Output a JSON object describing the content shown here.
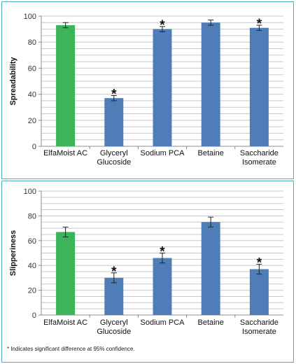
{
  "chart_data": [
    {
      "type": "bar",
      "categories": [
        [
          "ElfaMoist AC"
        ],
        [
          "Glyceryl",
          "Glucoside"
        ],
        [
          "Sodium PCA"
        ],
        [
          "Betaine"
        ],
        [
          "Saccharide",
          "Isomerate"
        ]
      ],
      "values": [
        93,
        37,
        90,
        95,
        91
      ],
      "errors": [
        2,
        2,
        2,
        2,
        2
      ],
      "significant": [
        false,
        true,
        true,
        false,
        true
      ],
      "bar_colors": [
        "#3cb45a",
        "#4f7db8",
        "#4f7db8",
        "#4f7db8",
        "#4f7db8"
      ],
      "ylabel": "Spreadability",
      "ylim": [
        0,
        100
      ],
      "yticks": [
        0,
        20,
        40,
        60,
        80,
        100
      ],
      "minor_grid_step": 5,
      "grid": true,
      "marker": "*"
    },
    {
      "type": "bar",
      "categories": [
        [
          "ElfaMoist AC"
        ],
        [
          "Glyceryl",
          "Glucoside"
        ],
        [
          "Sodium PCA"
        ],
        [
          "Betaine"
        ],
        [
          "Saccharide",
          "Isomerate"
        ]
      ],
      "values": [
        67,
        30,
        46,
        75,
        37
      ],
      "errors": [
        4,
        4,
        4,
        4,
        4
      ],
      "significant": [
        false,
        true,
        true,
        false,
        true
      ],
      "bar_colors": [
        "#3cb45a",
        "#4f7db8",
        "#4f7db8",
        "#4f7db8",
        "#4f7db8"
      ],
      "ylabel": "Slipperiness",
      "ylim": [
        0,
        100
      ],
      "yticks": [
        0,
        20,
        40,
        60,
        80,
        100
      ],
      "minor_grid_step": 5,
      "grid": true,
      "marker": "*"
    }
  ],
  "footnote": "* Indicates significant difference at 95% confidence."
}
